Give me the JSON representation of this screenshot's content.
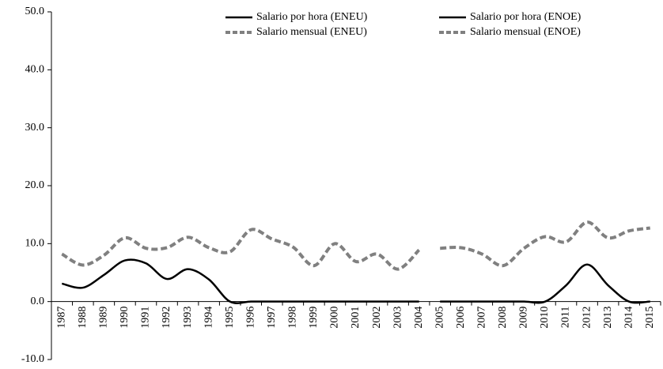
{
  "chart_data": {
    "type": "line",
    "categories": [
      "1987",
      "1988",
      "1989",
      "1990",
      "1991",
      "1992",
      "1993",
      "1994",
      "1995",
      "1996",
      "1997",
      "1998",
      "1999",
      "2000",
      "2001",
      "2002",
      "2003",
      "2004",
      "2005",
      "2006",
      "2007",
      "2008",
      "2009",
      "2010",
      "2011",
      "2012",
      "2013",
      "2014",
      "2015"
    ],
    "series": [
      {
        "name": "Salario por hora (ENEU)",
        "color": "#000000",
        "style": "solid",
        "values": [
          3.1,
          2.4,
          4.6,
          7.1,
          6.6,
          3.9,
          5.6,
          3.8,
          0,
          0,
          0,
          0,
          0,
          0,
          0,
          0,
          0,
          0,
          null,
          null,
          null,
          null,
          null,
          null,
          null,
          null,
          null,
          null,
          null
        ]
      },
      {
        "name": "Salario mensual (ENEU)",
        "color": "#808080",
        "style": "dashed",
        "values": [
          8.2,
          6.3,
          8.0,
          11.0,
          9.2,
          9.3,
          11.1,
          9.3,
          8.6,
          12.4,
          10.8,
          9.4,
          6.2,
          10.0,
          6.9,
          8.2,
          5.6,
          8.9,
          null,
          null,
          null,
          null,
          null,
          null,
          null,
          null,
          null,
          null,
          null
        ]
      },
      {
        "name": "Salario por hora (ENOE)",
        "color": "#000000",
        "style": "solid",
        "values": [
          null,
          null,
          null,
          null,
          null,
          null,
          null,
          null,
          null,
          null,
          null,
          null,
          null,
          null,
          null,
          null,
          null,
          null,
          0,
          0,
          0,
          0,
          0,
          0,
          2.8,
          6.4,
          2.8,
          0,
          0
        ]
      },
      {
        "name": "Salario mensual (ENOE)",
        "color": "#808080",
        "style": "dashed",
        "values": [
          null,
          null,
          null,
          null,
          null,
          null,
          null,
          null,
          null,
          null,
          null,
          null,
          null,
          null,
          null,
          null,
          null,
          null,
          9.2,
          9.3,
          8.2,
          6.2,
          9.2,
          11.2,
          10.3,
          13.7,
          11.0,
          12.2,
          12.7
        ]
      }
    ],
    "ylim": [
      -10,
      50
    ],
    "yticks": [
      {
        "value": -10,
        "label": "-10.0"
      },
      {
        "value": 0,
        "label": "0.0"
      },
      {
        "value": 10,
        "label": "10.0"
      },
      {
        "value": 20,
        "label": "20.0"
      },
      {
        "value": 30,
        "label": "30.0"
      },
      {
        "value": 40,
        "label": "40.0"
      },
      {
        "value": 50,
        "label": "50.0"
      }
    ],
    "grid": false,
    "legend": "top-right"
  }
}
